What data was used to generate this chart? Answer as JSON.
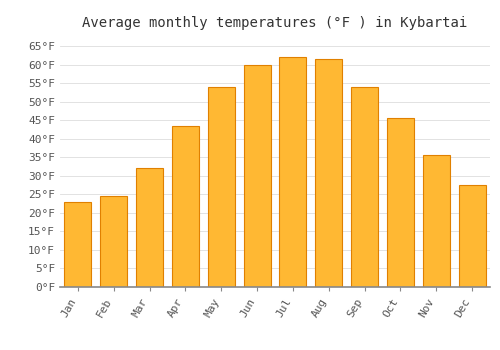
{
  "title": "Average monthly temperatures (°F ) in Kybartai",
  "months": [
    "Jan",
    "Feb",
    "Mar",
    "Apr",
    "May",
    "Jun",
    "Jul",
    "Aug",
    "Sep",
    "Oct",
    "Nov",
    "Dec"
  ],
  "values": [
    23,
    24.5,
    32,
    43.5,
    54,
    60,
    62,
    61.5,
    54,
    45.5,
    35.5,
    27.5
  ],
  "bar_color": "#FFA500",
  "bar_color_inner": "#FFB833",
  "bar_edge_color": "#E08000",
  "background_color": "#FFFFFF",
  "grid_color": "#DDDDDD",
  "ylim": [
    0,
    68
  ],
  "yticks": [
    0,
    5,
    10,
    15,
    20,
    25,
    30,
    35,
    40,
    45,
    50,
    55,
    60,
    65
  ],
  "title_fontsize": 10,
  "tick_fontsize": 8,
  "font_family": "monospace"
}
